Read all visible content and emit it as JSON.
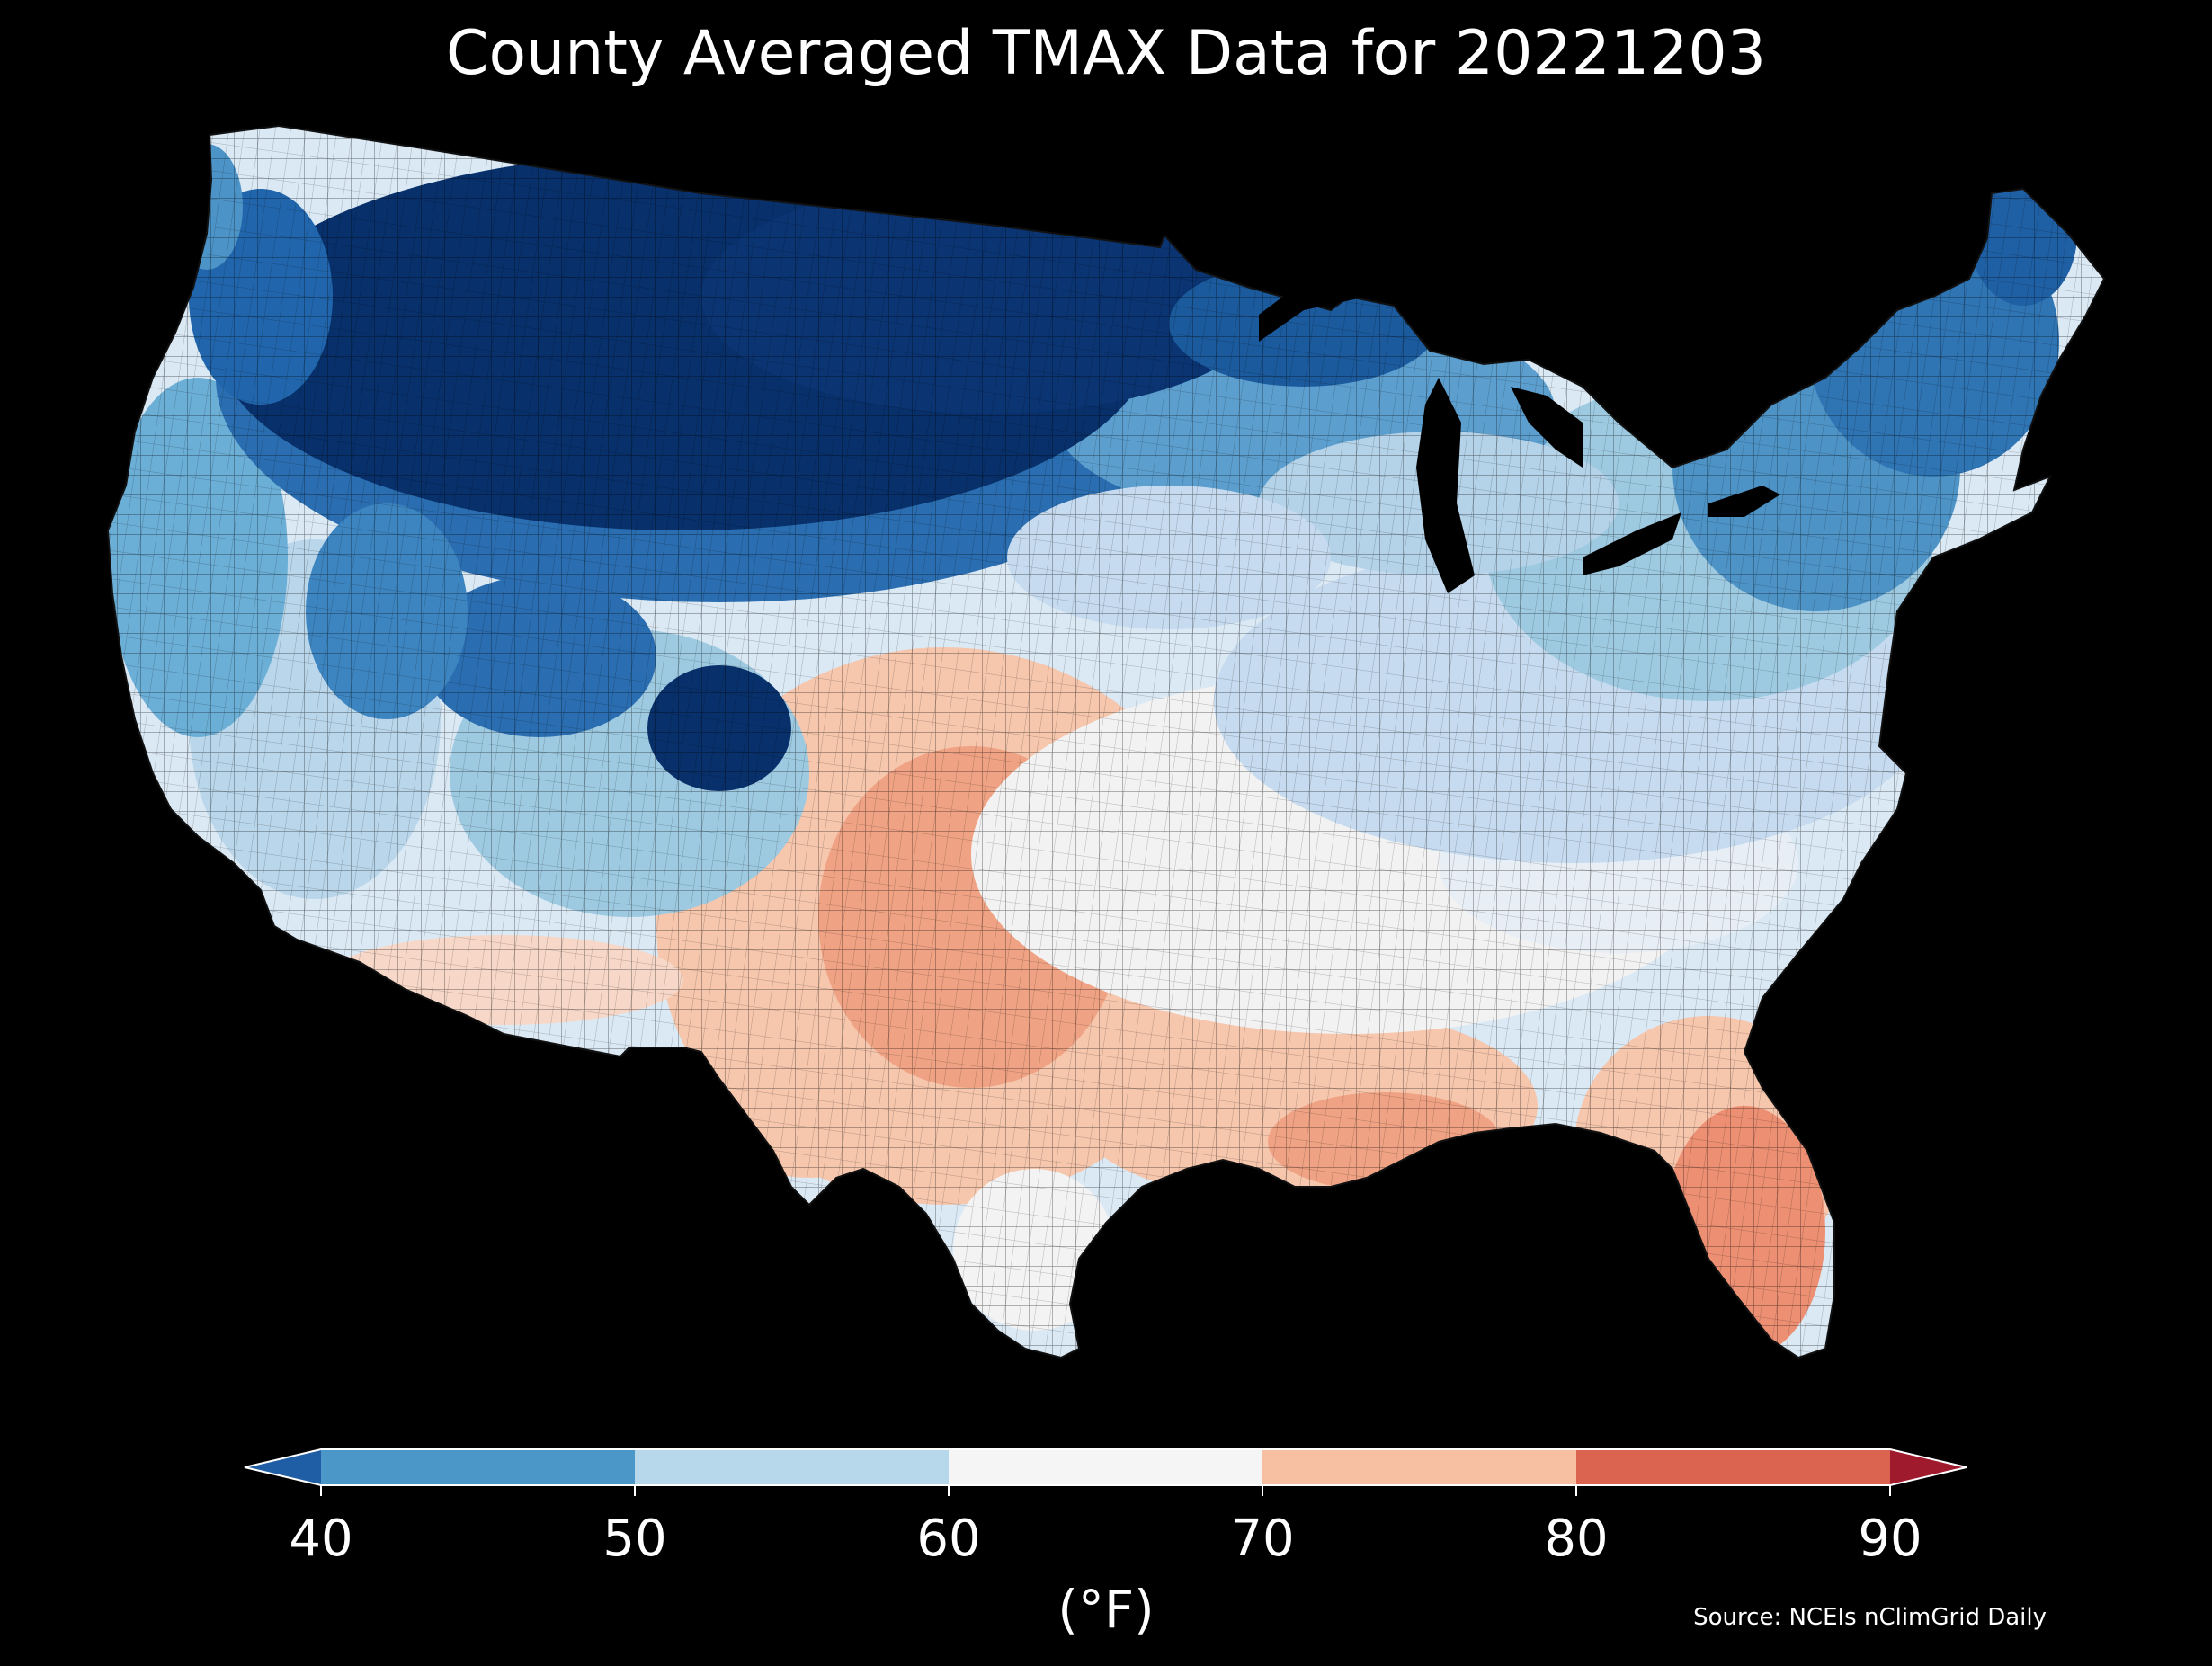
{
  "title": "County Averaged TMAX Data for 20221203",
  "colorbar": {
    "ticks": [
      "40",
      "50",
      "60",
      "70",
      "80",
      "90"
    ],
    "bins": [
      {
        "from": 40,
        "to": 50,
        "color": "#4a97c8"
      },
      {
        "from": 50,
        "to": 60,
        "color": "#b7d7ea"
      },
      {
        "from": 60,
        "to": 70,
        "color": "#f5f5f5"
      },
      {
        "from": 70,
        "to": 80,
        "color": "#f8c0a3"
      },
      {
        "from": 80,
        "to": 90,
        "color": "#db6451"
      }
    ],
    "under_color": "#1f5ea5",
    "over_color": "#a01a2e",
    "units": "(°F)"
  },
  "source": "Source: NCEIs nClimGrid Daily",
  "map_colors": {
    "coldest": "#08306b",
    "cold": "#2166ac",
    "cool": "#6baed6",
    "mild": "#c6dbef",
    "neutral": "#f2f2f2",
    "warm": "#fbcdb5",
    "hot": "#ec9174"
  }
}
